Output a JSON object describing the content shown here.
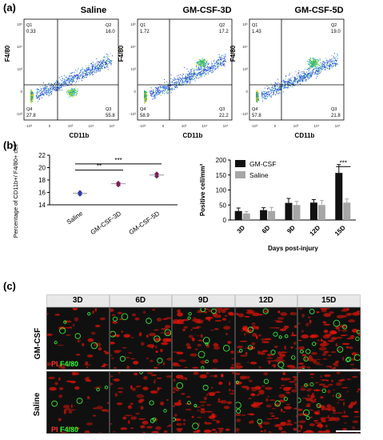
{
  "panels": {
    "a": "(a)",
    "b": "(b)",
    "c": "(c)"
  },
  "flow": {
    "plots": [
      {
        "title": "Saline",
        "q1": "0.33",
        "q2": "16.0",
        "q3": "55.8",
        "q4": "27.8"
      },
      {
        "title": "GM-CSF-3D",
        "q1": "1.72",
        "q2": "17.2",
        "q3": "22.2",
        "q4": "58.9"
      },
      {
        "title": "GM-CSF-5D",
        "q1": "1.43",
        "q2": "19.0",
        "q3": "21.8",
        "q4": "57.8"
      }
    ],
    "quadrant_names": [
      "Q1",
      "Q2",
      "Q3",
      "Q4"
    ],
    "xlabel": "CD11b",
    "ylabel": "F4/80"
  },
  "chart_data": [
    {
      "type": "scatter",
      "ylabel": "Percentage of CD11b+/ F4/80+ cells",
      "categories": [
        "Saline",
        "GM-CSF-3D",
        "GM-CSF-5D"
      ],
      "series": [
        {
          "values": [
            [
              16.0,
              15.7
            ],
            [
              17.2,
              17.5
            ],
            [
              19.0,
              18.6
            ]
          ]
        }
      ],
      "means": [
        15.85,
        17.4,
        18.8
      ],
      "colors": [
        "#2f3aa8",
        "#7a1f5a",
        "#7a1f5a"
      ],
      "ylim": [
        14,
        22
      ],
      "yticks": [
        "14",
        "16",
        "18",
        "20",
        "22"
      ],
      "significance": [
        {
          "pair": [
            "Saline",
            "GM-CSF-3D"
          ],
          "label": "**"
        },
        {
          "pair": [
            "Saline",
            "GM-CSF-5D"
          ],
          "label": "***"
        }
      ]
    },
    {
      "type": "bar",
      "ylabel": "Positive cell/mm²",
      "xlabel": "Days post-injury",
      "categories": [
        "3D",
        "6D",
        "9D",
        "12D",
        "15D"
      ],
      "series": [
        {
          "name": "GM-CSF",
          "color": "#111111",
          "values": [
            30,
            33,
            57,
            58,
            157
          ],
          "errors": [
            10,
            8,
            15,
            10,
            28
          ]
        },
        {
          "name": "Saline",
          "color": "#a6a6a6",
          "values": [
            22,
            30,
            50,
            50,
            58
          ],
          "errors": [
            6,
            12,
            12,
            15,
            12
          ]
        }
      ],
      "ylim": [
        0,
        200
      ],
      "yticks": [
        "0",
        "50",
        "100",
        "150",
        "200"
      ],
      "significance": [
        {
          "category": "15D",
          "label": "***"
        }
      ],
      "legend": "top-left"
    }
  ],
  "micro": {
    "days": [
      "3D",
      "6D",
      "9D",
      "12D",
      "15D"
    ],
    "rows": [
      "GM-CSF",
      "Saline"
    ],
    "stain_pi": "PI",
    "stain_f480": "F4/80"
  }
}
